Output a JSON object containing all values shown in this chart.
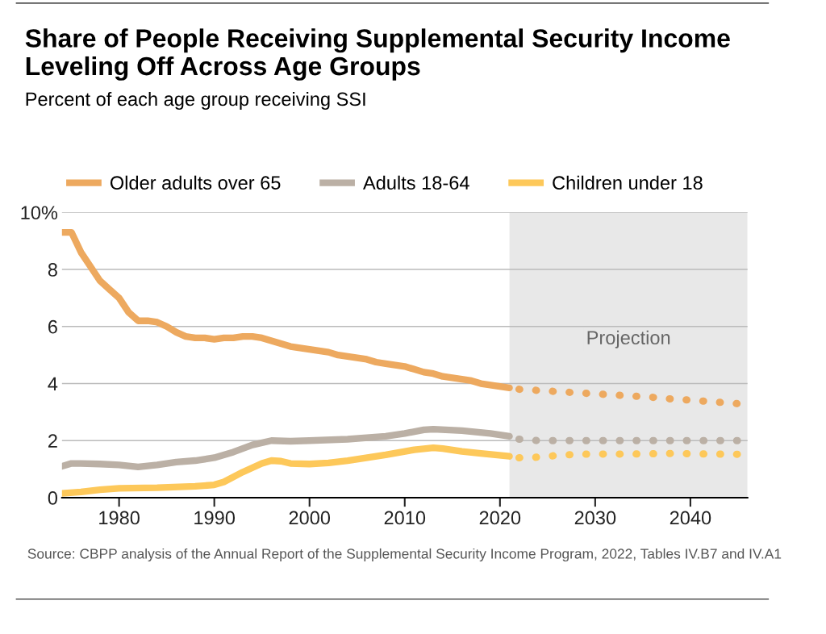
{
  "chart_data": {
    "type": "line",
    "title": "Share of People Receiving Supplemental Security Income Leveling Off Across Age Groups",
    "subtitle": "Percent of each age group receiving SSI",
    "series": [
      {
        "name": "Older adults over 65",
        "color": "#eda95f",
        "line_style": "solid",
        "x": [
          1974,
          1975,
          1976,
          1977,
          1978,
          1979,
          1980,
          1981,
          1982,
          1983,
          1984,
          1985,
          1986,
          1987,
          1988,
          1989,
          1990,
          1991,
          1992,
          1993,
          1994,
          1995,
          1996,
          1997,
          1998,
          1999,
          2000,
          2001,
          2002,
          2003,
          2004,
          2005,
          2006,
          2007,
          2008,
          2009,
          2010,
          2011,
          2012,
          2013,
          2014,
          2015,
          2016,
          2017,
          2018,
          2019,
          2020,
          2021
        ],
        "values": [
          9.3,
          9.3,
          8.6,
          8.1,
          7.6,
          7.3,
          7.0,
          6.5,
          6.2,
          6.2,
          6.15,
          6.0,
          5.8,
          5.65,
          5.6,
          5.6,
          5.55,
          5.6,
          5.6,
          5.65,
          5.65,
          5.6,
          5.5,
          5.4,
          5.3,
          5.25,
          5.2,
          5.15,
          5.1,
          5.0,
          4.95,
          4.9,
          4.85,
          4.75,
          4.7,
          4.65,
          4.6,
          4.5,
          4.4,
          4.35,
          4.25,
          4.2,
          4.15,
          4.1,
          4.0,
          3.95,
          3.9,
          3.85
        ]
      },
      {
        "name": "Adults 18-64",
        "color": "#bbb0a5",
        "line_style": "solid",
        "x": [
          1974,
          1975,
          1976,
          1978,
          1980,
          1982,
          1984,
          1986,
          1988,
          1990,
          1992,
          1994,
          1996,
          1998,
          2000,
          2004,
          2008,
          2010,
          2012,
          2013,
          2016,
          2019,
          2021
        ],
        "values": [
          1.1,
          1.2,
          1.2,
          1.18,
          1.15,
          1.08,
          1.15,
          1.25,
          1.3,
          1.4,
          1.6,
          1.85,
          2.0,
          1.98,
          2.0,
          2.05,
          2.15,
          2.25,
          2.38,
          2.4,
          2.35,
          2.25,
          2.15
        ]
      },
      {
        "name": "Children under 18",
        "color": "#fdc85a",
        "line_style": "solid",
        "x": [
          1974,
          1976,
          1978,
          1980,
          1984,
          1988,
          1990,
          1991,
          1993,
          1995,
          1996,
          1997,
          1998,
          2000,
          2002,
          2004,
          2008,
          2011,
          2013,
          2014,
          2016,
          2018,
          2021
        ],
        "values": [
          0.15,
          0.2,
          0.28,
          0.33,
          0.35,
          0.4,
          0.45,
          0.55,
          0.9,
          1.2,
          1.3,
          1.28,
          1.2,
          1.18,
          1.22,
          1.3,
          1.5,
          1.68,
          1.75,
          1.72,
          1.62,
          1.55,
          1.45
        ]
      },
      {
        "color": "#eda95f",
        "line_style": "dotted",
        "x": [
          2022,
          2024,
          2026,
          2028,
          2030,
          2032,
          2034,
          2036,
          2038,
          2040,
          2042,
          2044,
          2046
        ],
        "values": [
          3.8,
          3.76,
          3.72,
          3.68,
          3.64,
          3.6,
          3.56,
          3.52,
          3.46,
          3.42,
          3.37,
          3.32,
          3.27
        ]
      },
      {
        "color": "#bbb0a5",
        "line_style": "dotted",
        "x": [
          2022,
          2024,
          2026,
          2030,
          2034,
          2038,
          2042,
          2046
        ],
        "values": [
          2.05,
          2.0,
          2.0,
          2.0,
          2.0,
          2.0,
          2.0,
          2.0
        ]
      },
      {
        "color": "#fdc85a",
        "line_style": "dotted",
        "x": [
          2022,
          2024,
          2026,
          2028,
          2030,
          2034,
          2038,
          2042,
          2046
        ],
        "values": [
          1.4,
          1.42,
          1.48,
          1.52,
          1.53,
          1.53,
          1.55,
          1.53,
          1.52
        ]
      }
    ],
    "xlim": [
      1974,
      2046
    ],
    "xticks": [
      1980,
      1990,
      2000,
      2010,
      2020,
      2030,
      2040
    ],
    "ylim": [
      0,
      10
    ],
    "yticks": [
      0,
      2,
      4,
      6,
      8,
      {
        "value": 10,
        "label": "10%"
      }
    ],
    "bands": [
      {
        "axis": "x",
        "from": 2021,
        "to": 2046,
        "label": "Projection",
        "color": "#e8e8e8"
      }
    ],
    "grid": "y",
    "legend": "top",
    "marker": "none",
    "annotations": [
      "Source: CBPP analysis of the Annual Report of the Supplemental Security Income Program, 2022, Tables IV.B7 and IV.A1"
    ]
  }
}
